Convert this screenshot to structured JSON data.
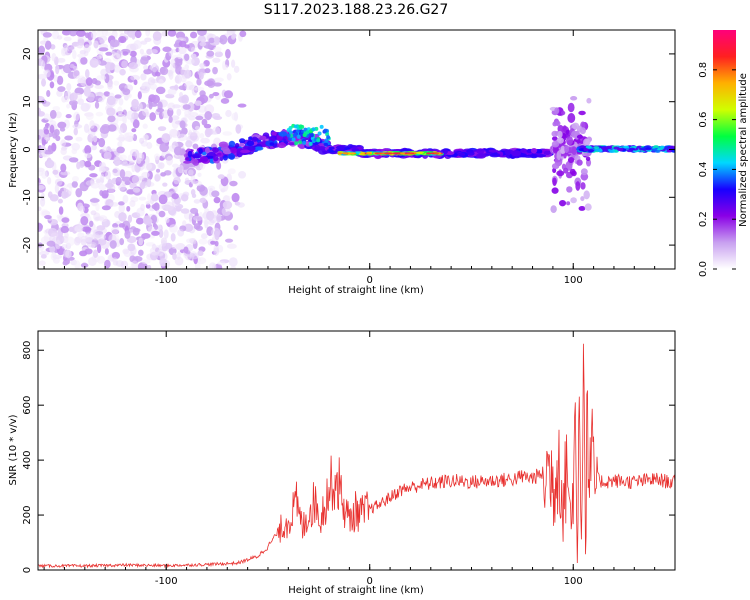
{
  "title": "S117.2023.188.23.26.G27",
  "chart_data": [
    {
      "type": "heatmap",
      "xlabel": "Height of straight line (km)",
      "ylabel": "Frequency (Hz)",
      "xlim": [
        -163,
        150
      ],
      "ylim": [
        -25,
        25
      ],
      "xticks": [
        -100,
        0,
        100
      ],
      "yticks": [
        -20,
        -10,
        0,
        10,
        20
      ],
      "grid": false,
      "colorbar": {
        "label": "Normalized spectral amplitude",
        "range": [
          0,
          0.96
        ],
        "ticks": [
          0.0,
          0.2,
          0.4,
          0.6,
          0.8
        ],
        "colors": [
          "#ffffff",
          "#c8a0f0",
          "#8a00e6",
          "#1800ff",
          "#00d8ff",
          "#00ff40",
          "#d0ff00",
          "#ffb000",
          "#ff2020",
          "#ff007a"
        ]
      },
      "regions": [
        {
          "name": "noise",
          "x": [
            -163,
            -60
          ],
          "y": [
            -25,
            25
          ],
          "amplitude": 0.05
        },
        {
          "name": "onset",
          "x": [
            -90,
            -20
          ],
          "y": [
            -3,
            6
          ],
          "amplitude": 0.3
        },
        {
          "name": "ridge",
          "x": [
            -20,
            90
          ],
          "y": [
            -1.5,
            1
          ],
          "amplitude": 0.7
        },
        {
          "name": "spike",
          "x": [
            90,
            108
          ],
          "y": [
            -15,
            15
          ],
          "amplitude": 0.15
        },
        {
          "name": "tail",
          "x": [
            102,
            150
          ],
          "y": [
            -0.5,
            0.8
          ],
          "amplitude": 0.45
        }
      ]
    },
    {
      "type": "line",
      "xlabel": "Height of straight line (km)",
      "ylabel": "SNR (10 * v/v)",
      "xlim": [
        -163,
        150
      ],
      "ylim": [
        0,
        870
      ],
      "xticks": [
        -100,
        0,
        100
      ],
      "yticks": [
        0,
        200,
        400,
        600,
        800
      ],
      "grid": false,
      "series": [
        {
          "color": "#e8302e",
          "x": [
            -163,
            -140,
            -120,
            -100,
            -80,
            -65,
            -55,
            -50,
            -45,
            -40,
            -36,
            -33,
            -30,
            -27,
            -24,
            -21,
            -18,
            -15,
            -13,
            -10,
            -7,
            -4,
            0,
            5,
            10,
            15,
            20,
            25,
            30,
            40,
            50,
            60,
            70,
            75,
            80,
            85,
            88,
            91,
            93,
            95,
            97,
            99,
            101,
            102,
            103,
            104,
            105,
            106,
            107,
            108,
            109,
            110,
            112,
            115,
            120,
            130,
            140,
            150
          ],
          "y": [
            15,
            15,
            18,
            16,
            20,
            25,
            50,
            85,
            140,
            180,
            240,
            150,
            210,
            250,
            190,
            270,
            330,
            310,
            240,
            180,
            215,
            205,
            220,
            240,
            265,
            290,
            300,
            310,
            315,
            325,
            320,
            325,
            330,
            340,
            335,
            350,
            360,
            300,
            460,
            200,
            420,
            140,
            540,
            20,
            860,
            110,
            830,
            90,
            600,
            250,
            470,
            320,
            330,
            320,
            325,
            320,
            330,
            318
          ]
        }
      ]
    }
  ]
}
